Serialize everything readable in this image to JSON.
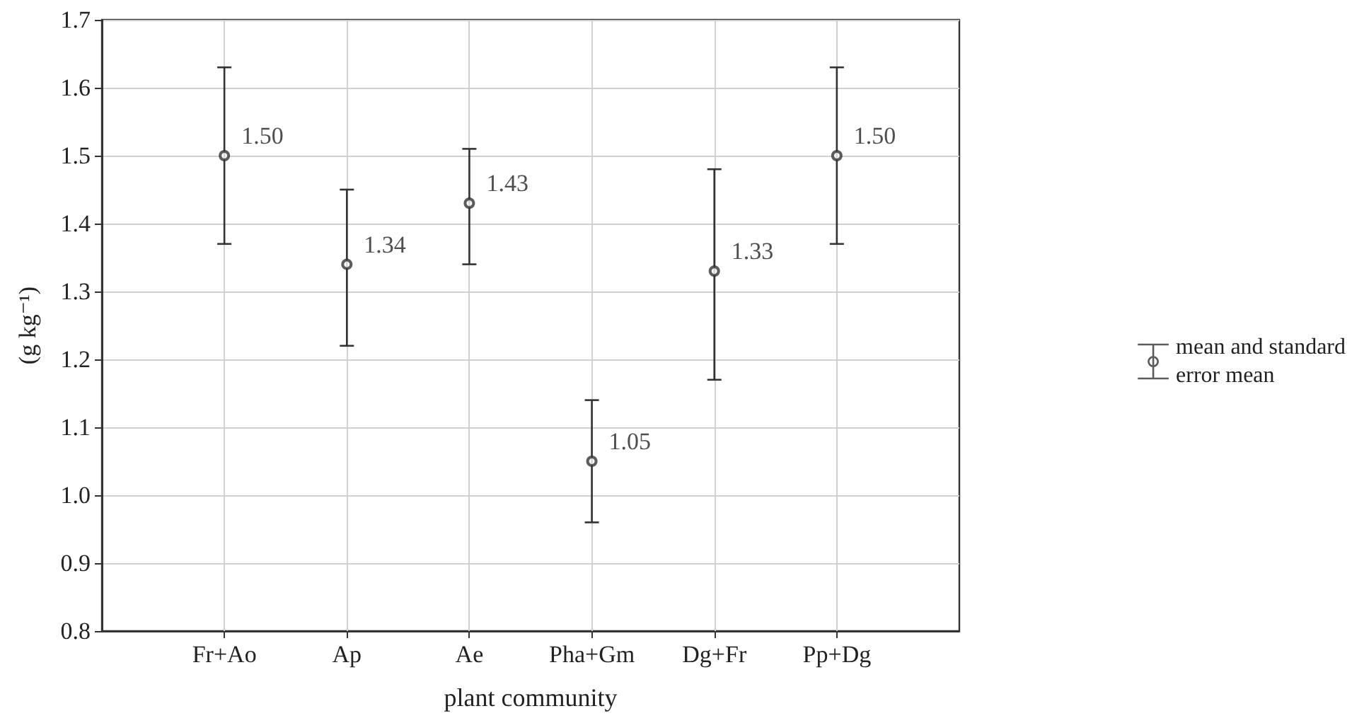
{
  "chart_data": {
    "type": "scatter",
    "xlabel": "plant community",
    "ylabel": "(g kg⁻¹)",
    "categories": [
      "Fr+Ao",
      "Ap",
      "Ae",
      "Pha+Gm",
      "Dg+Fr",
      "Pp+Dg"
    ],
    "series": [
      {
        "name": "mean and standard error mean",
        "color": "#333333",
        "values": [
          1.5,
          1.34,
          1.43,
          1.05,
          1.33,
          1.5
        ],
        "errors": [
          [
            1.37,
            1.63
          ],
          [
            1.22,
            1.45
          ],
          [
            1.34,
            1.51
          ],
          [
            0.96,
            1.14
          ],
          [
            1.17,
            1.48
          ],
          [
            1.37,
            1.63
          ]
        ],
        "value_labels": [
          "1.50",
          "1.34",
          "1.43",
          "1.05",
          "1.33",
          "1.50"
        ]
      }
    ],
    "ylim": [
      0.8,
      1.7
    ],
    "yticks": [
      0.8,
      0.9,
      {
        "value": 1.0,
        "label": "1.0"
      },
      1.1,
      1.2,
      1.3,
      1.4,
      1.5,
      1.6,
      1.7
    ],
    "grid": true,
    "legend": "right",
    "marker": "circle"
  }
}
